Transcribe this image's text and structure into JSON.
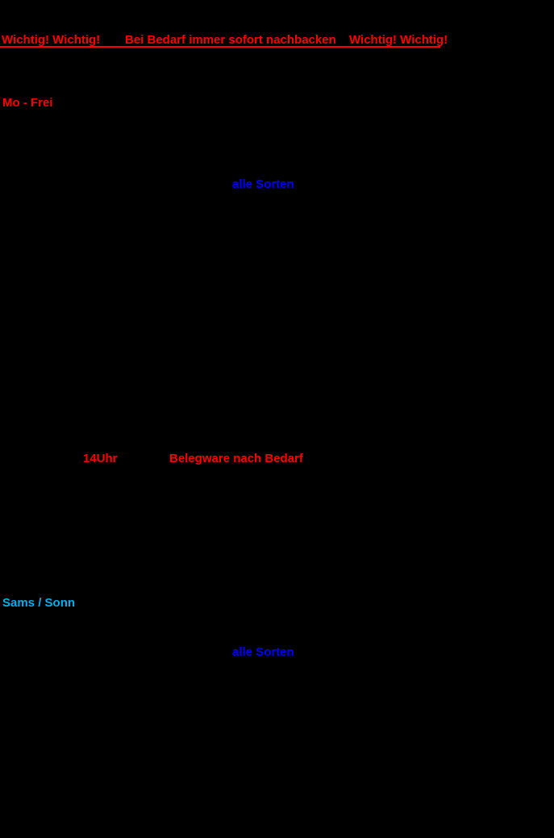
{
  "header": {
    "warning_left": "Wichtig! Wichtig!",
    "warning_center": "Bei Bedarf immer sofort nachbacken",
    "warning_right": "Wichtig! Wichtig!"
  },
  "weekday_section": {
    "heading": "Mo - Frei",
    "all_varieties_note": "alle Sorten",
    "time_note": "14Uhr",
    "topping_note": "Belegware nach Bedarf"
  },
  "weekend_section": {
    "heading": "Sams / Sonn",
    "all_varieties_note": "alle Sorten"
  },
  "colors": {
    "warning_red": "#FF0000",
    "note_blue": "#0000FF",
    "weekend_cyan": "#00B0F0",
    "background": "#000000"
  }
}
